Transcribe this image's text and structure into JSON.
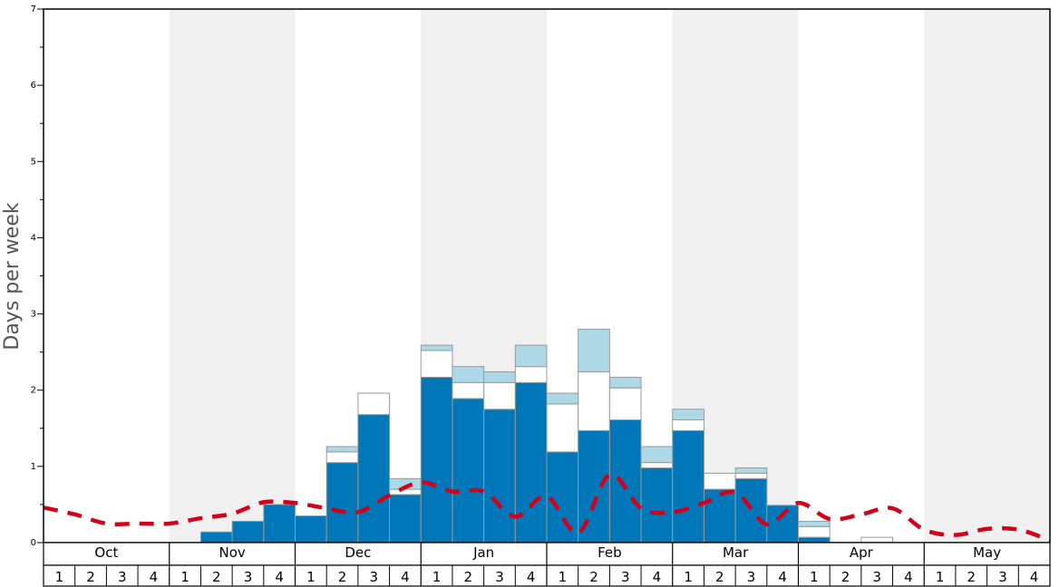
{
  "chart_data": {
    "type": "bar",
    "ylabel": "Days per week",
    "ylim": [
      0,
      7
    ],
    "y_ticks": [
      "0",
      "1",
      "2",
      "3",
      "4",
      "5",
      "6",
      "7"
    ],
    "months": [
      "Oct",
      "Nov",
      "Dec",
      "Jan",
      "Feb",
      "Mar",
      "Apr",
      "May"
    ],
    "weeks": [
      "1",
      "2",
      "3",
      "4"
    ],
    "shaded_months": [
      "Nov",
      "Jan",
      "Mar",
      "May"
    ],
    "series": [
      {
        "color": "#0077b8",
        "values": [
          0,
          0,
          0,
          0,
          0,
          0.14,
          0.28,
          0.5,
          0.35,
          1.05,
          1.68,
          0.63,
          2.17,
          1.89,
          1.75,
          2.1,
          1.19,
          1.47,
          1.61,
          0.98,
          1.47,
          0.7,
          0.84,
          0.49,
          0.07,
          0,
          0,
          0,
          0,
          0,
          0,
          0
        ]
      },
      {
        "color": "#ffffff",
        "values": [
          0,
          0,
          0,
          0,
          0,
          0,
          0,
          0,
          0,
          0.14,
          0.28,
          0.07,
          0.35,
          0.21,
          0.35,
          0.21,
          0.63,
          0.77,
          0.42,
          0.07,
          0.14,
          0.21,
          0.07,
          0,
          0.14,
          0,
          0.07,
          0,
          0,
          0,
          0,
          0
        ]
      },
      {
        "color": "#add8e6",
        "values": [
          0,
          0,
          0,
          0,
          0,
          0,
          0,
          0,
          0,
          0.07,
          0,
          0.14,
          0.07,
          0.21,
          0.14,
          0.28,
          0.14,
          0.56,
          0.14,
          0.21,
          0.14,
          0,
          0.07,
          0,
          0.07,
          0,
          0,
          0,
          0,
          0,
          0,
          0
        ]
      }
    ],
    "line": {
      "color": "#d0021b",
      "values": [
        0.46,
        0.37,
        0.25,
        0.25,
        0.25,
        0.32,
        0.38,
        0.53,
        0.52,
        0.45,
        0.4,
        0.62,
        0.79,
        0.67,
        0.67,
        0.34,
        0.61,
        0.13,
        0.89,
        0.45,
        0.4,
        0.52,
        0.66,
        0.24,
        0.52,
        0.31,
        0.37,
        0.45,
        0.17,
        0.1,
        0.18,
        0.17,
        0.03
      ]
    }
  }
}
